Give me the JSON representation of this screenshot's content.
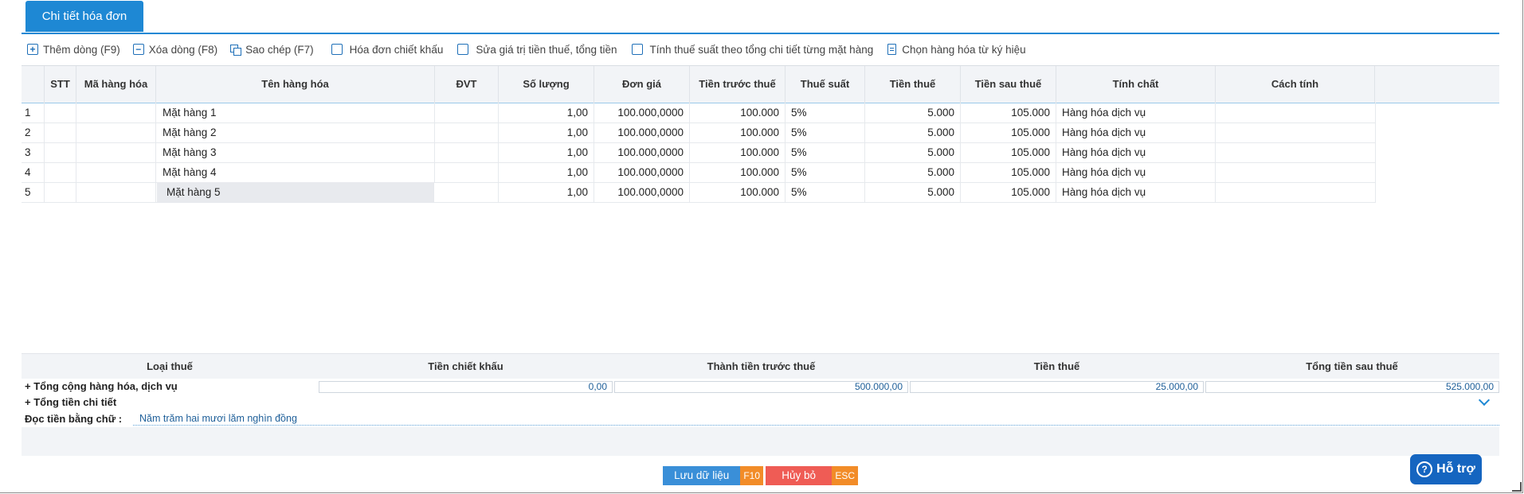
{
  "tabs": [
    {
      "label": "Chi tiết hóa đơn"
    }
  ],
  "toolbar": {
    "add_row": "Thêm dòng (F9)",
    "delete_row": "Xóa dòng (F8)",
    "copy": "Sao chép (F7)",
    "discount_invoice": "Hóa đơn chiết khấu",
    "edit_tax": "Sửa giá trị tiền thuế, tổng tiền",
    "calc_tax_rate": "Tính thuế suất theo tổng chi tiết từng mặt hàng",
    "choose_goods": "Chọn hàng hóa từ ký hiệu"
  },
  "grid": {
    "columns": [
      "STT",
      "Mã hàng hóa",
      "Tên hàng hóa",
      "ĐVT",
      "Số lượng",
      "Đơn giá",
      "Tiền trước thuế",
      "Thuế suất",
      "Tiền thuế",
      "Tiền sau thuế",
      "Tính chất",
      "Cách tính"
    ],
    "rows": [
      {
        "idx": "1",
        "stt": "",
        "code": "",
        "name": "Mặt hàng 1",
        "unit": "",
        "qty": "1,00",
        "price": "100.000,0000",
        "pretax": "100.000",
        "rate": "5%",
        "tax": "5.000",
        "total": "105.000",
        "type": "Hàng hóa dịch vụ",
        "method": ""
      },
      {
        "idx": "2",
        "stt": "",
        "code": "",
        "name": "Mặt hàng 2",
        "unit": "",
        "qty": "1,00",
        "price": "100.000,0000",
        "pretax": "100.000",
        "rate": "5%",
        "tax": "5.000",
        "total": "105.000",
        "type": "Hàng hóa dịch vụ",
        "method": ""
      },
      {
        "idx": "3",
        "stt": "",
        "code": "",
        "name": "Mặt hàng 3",
        "unit": "",
        "qty": "1,00",
        "price": "100.000,0000",
        "pretax": "100.000",
        "rate": "5%",
        "tax": "5.000",
        "total": "105.000",
        "type": "Hàng hóa dịch vụ",
        "method": ""
      },
      {
        "idx": "4",
        "stt": "",
        "code": "",
        "name": "Mặt hàng 4",
        "unit": "",
        "qty": "1,00",
        "price": "100.000,0000",
        "pretax": "100.000",
        "rate": "5%",
        "tax": "5.000",
        "total": "105.000",
        "type": "Hàng hóa dịch vụ",
        "method": ""
      },
      {
        "idx": "5",
        "stt": "",
        "code": "",
        "name": "Mặt hàng 5",
        "unit": "",
        "qty": "1,00",
        "price": "100.000,0000",
        "pretax": "100.000",
        "rate": "5%",
        "tax": "5.000",
        "total": "105.000",
        "type": "Hàng hóa dịch vụ",
        "method": ""
      }
    ]
  },
  "summary": {
    "headers": [
      "Loại thuế",
      "Tiền chiết khấu",
      "Thành tiền trước thuế",
      "Tiền thuế",
      "Tổng tiền sau thuế"
    ],
    "goods_label": "+ Tổng cộng hàng hóa, dịch vụ",
    "discount": "0,00",
    "pretax_total": "500.000,00",
    "tax_total": "25.000,00",
    "grand_total": "525.000,00",
    "detail_label": "+ Tổng tiền chi tiết",
    "words_label": "Đọc tiền bằng chữ :",
    "words_value": "Năm trăm hai mươi lăm nghìn đồng"
  },
  "actions": {
    "save_label": "Lưu dữ liệu",
    "save_key": "F10",
    "cancel_label": "Hủy bỏ",
    "cancel_key": "ESC",
    "help_label": "Hỗ trợ"
  },
  "colors": {
    "accent": "#1e88d4",
    "save": "#3a8fd8",
    "cancel": "#ef5c55",
    "key": "#f28c28",
    "help": "#1565c0"
  }
}
